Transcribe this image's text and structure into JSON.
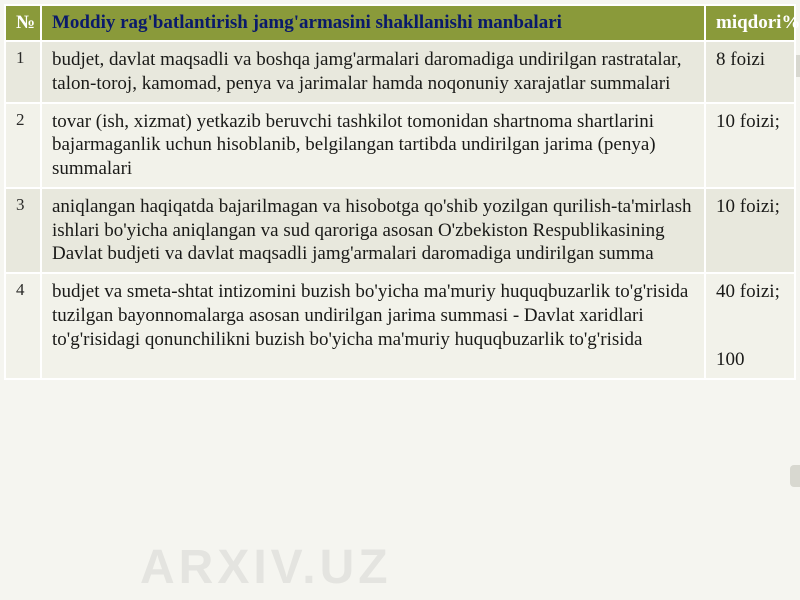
{
  "watermark_text": "ARXIV.UZ",
  "colors": {
    "header_bg": "#8a9a3a",
    "header_title_text": "#0a1a6a",
    "header_other_text": "#ffffff",
    "row_odd_bg": "#e8e8dd",
    "row_even_bg": "#f2f2ea",
    "cell_text": "#1a1a18",
    "page_bg": "#f5f5f0",
    "watermark_color": "rgba(180,180,175,0.25)",
    "border_color": "#ffffff"
  },
  "typography": {
    "header_fontsize": 19,
    "cell_fontsize": 19,
    "num_fontsize": 17,
    "font_family": "Georgia, serif"
  },
  "table": {
    "columns": {
      "num": "№",
      "title": "Moddiy rag'batlantirish jamg'armasini shakllanishi manbalari",
      "pct": "miqdori%"
    },
    "rows": [
      {
        "num": "1",
        "desc": "budjet, davlat maqsadli va boshqa jamg'armalari daromadiga undirilgan rastratalar, talon-toroj, kamomad, penya va jarimalar hamda noqonuniy xarajatlar summalari",
        "pct": "8 foizi"
      },
      {
        "num": "2",
        "desc": "tovar (ish, xizmat) yetkazib beruvchi tashkilot tomonidan shartnoma shartlarini bajarmaganlik uchun hisoblanib, belgilangan tartibda undirilgan jarima (penya) summalari",
        "pct": "10 foizi;"
      },
      {
        "num": "3",
        "desc": "aniqlangan haqiqatda bajarilmagan va hisobotga qo'shib yozilgan qurilish-ta'mirlash ishlari bo'yicha aniqlangan va sud qaroriga asosan O'zbekiston Respublikasining Davlat budjeti va davlat maqsadli jamg'armalari daromadiga undirilgan summa",
        "pct": "10 foizi;"
      },
      {
        "num": "4",
        "desc": "budjet va smeta-shtat intizomini buzish bo'yicha ma'muriy huquqbuzarlik to'g'risida tuzilgan bayonnomalarga asosan undirilgan jarima summasi\n- Davlat xaridlari to'g'risidagi qonunchilikni buzish bo'yicha ma'muriy huquqbuzarlik to'g'risida",
        "pct_a": "40 foizi;",
        "pct_b": "100"
      }
    ]
  }
}
